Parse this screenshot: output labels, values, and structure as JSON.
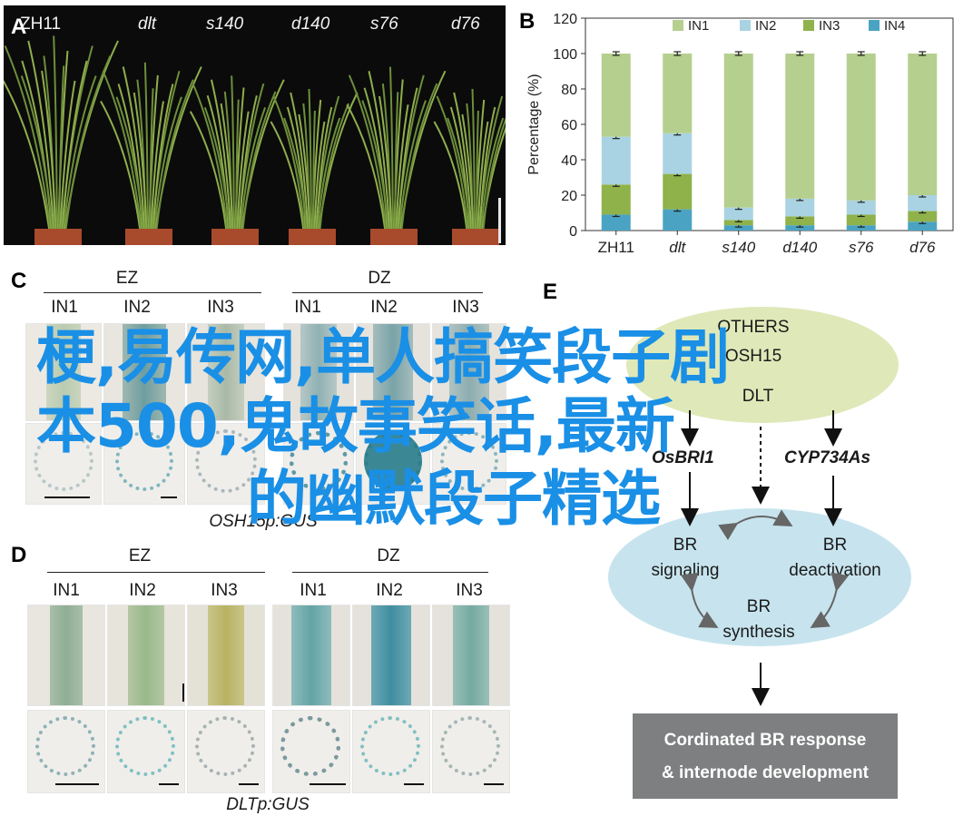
{
  "panels": {
    "a": {
      "letter": "A",
      "labels": [
        "ZH11",
        "dlt",
        "s140",
        "d140",
        "s76",
        "d76"
      ]
    },
    "b": {
      "letter": "B"
    },
    "c": {
      "letter": "C",
      "groups": [
        "EZ",
        "DZ"
      ],
      "internodes": [
        "IN1",
        "IN2",
        "IN3",
        "IN1",
        "IN2",
        "IN3"
      ],
      "caption": "OSH15p:GUS"
    },
    "d": {
      "letter": "D",
      "groups": [
        "EZ",
        "DZ"
      ],
      "internodes": [
        "IN1",
        "IN2",
        "IN3",
        "IN1",
        "IN2",
        "IN3"
      ],
      "caption": "DLTp:GUS"
    },
    "e": {
      "letter": "E",
      "nodes": {
        "top_line1": "OTHERS",
        "top_line2": "OSH15",
        "top_line3": "DLT",
        "osbri1": "OsBRI1",
        "cyp": "CYP734As",
        "br_signaling_1": "BR",
        "br_signaling_2": "signaling",
        "br_deact_1": "BR",
        "br_deact_2": "deactivation",
        "br_synth_1": "BR",
        "br_synth_2": "synthesis"
      },
      "result_line1": "Cordinated BR response",
      "result_line2": "& internode development",
      "colors": {
        "top_ellipse": "#dfe8b8",
        "br_ellipse": "#c7e4ee",
        "result_box": "#7d7f80"
      }
    }
  },
  "overlay": {
    "line1": "梗,易传网,单人搞笑段子剧",
    "line2": "本500,鬼故事笑话,最新",
    "line3": "的幽默段子精选",
    "color": "#1a8fe6"
  },
  "chart_data": {
    "type": "bar",
    "stacked": true,
    "categories": [
      "ZH11",
      "dlt",
      "s140",
      "d140",
      "s76",
      "d76"
    ],
    "series": [
      {
        "name": "IN4",
        "color": "#4aa3c3",
        "values": [
          9,
          12,
          3,
          3,
          3,
          5
        ]
      },
      {
        "name": "IN3",
        "color": "#8fb24a",
        "values": [
          17,
          20,
          3,
          5,
          6,
          6
        ]
      },
      {
        "name": "IN2",
        "color": "#a9d3e2",
        "values": [
          27,
          23,
          7,
          10,
          8,
          9
        ]
      },
      {
        "name": "IN1",
        "color": "#b5cf8e",
        "values": [
          47,
          45,
          87,
          82,
          83,
          80
        ]
      }
    ],
    "legend_order": [
      "IN1",
      "IN2",
      "IN3",
      "IN4"
    ],
    "legend_position": "top",
    "ylabel": "Percentage (%)",
    "ylim": [
      0,
      120
    ],
    "yticks": [
      0,
      20,
      40,
      60,
      80,
      100,
      120
    ],
    "category_italic": [
      false,
      true,
      true,
      true,
      true,
      true
    ]
  }
}
